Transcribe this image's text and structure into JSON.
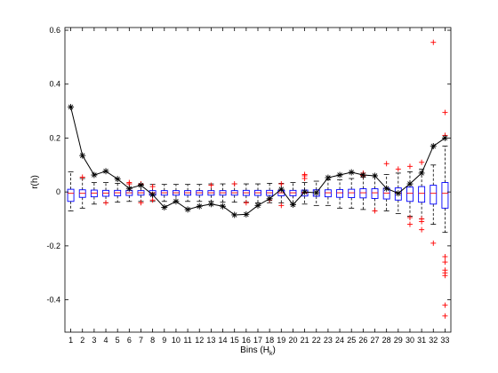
{
  "chart_data": {
    "type": "box",
    "xlabel": "Bins (H",
    "xlabel_sub": "k",
    "xlabel_close": ")",
    "ylabel": "r(h)",
    "ylim": [
      -0.52,
      0.61
    ],
    "xlim": [
      0.5,
      33.5
    ],
    "categories": [
      "1",
      "2",
      "3",
      "4",
      "5",
      "6",
      "7",
      "8",
      "9",
      "10",
      "11",
      "12",
      "13",
      "14",
      "15",
      "16",
      "17",
      "18",
      "19",
      "20",
      "21",
      "22",
      "23",
      "24",
      "25",
      "26",
      "27",
      "28",
      "29",
      "30",
      "31",
      "32",
      "33"
    ],
    "y_ticks": [
      -0.4,
      -0.2,
      0,
      0.2,
      0.4,
      0.6
    ],
    "y_tick_labels": [
      "-0.4",
      "-0.2",
      "0",
      "0.2",
      "0.4",
      "0.6"
    ],
    "grid": false,
    "colors": {
      "box": "#0000ff",
      "median": "#ff0000",
      "outlier": "#ff0000",
      "whisker": "#000000",
      "line": "#000000"
    },
    "boxes": [
      {
        "q1": -0.035,
        "median": -0.005,
        "q3": 0.01,
        "whisker_low": -0.07,
        "whisker_high": 0.075,
        "outliers": []
      },
      {
        "q1": -0.02,
        "median": -0.005,
        "q3": 0.008,
        "whisker_low": -0.06,
        "whisker_high": 0.05,
        "outliers": [
          0.055
        ]
      },
      {
        "q1": -0.018,
        "median": -0.004,
        "q3": 0.007,
        "whisker_low": -0.045,
        "whisker_high": 0.035,
        "outliers": []
      },
      {
        "q1": -0.016,
        "median": -0.004,
        "q3": 0.006,
        "whisker_low": -0.04,
        "whisker_high": 0.035,
        "outliers": [
          -0.04
        ]
      },
      {
        "q1": -0.014,
        "median": -0.003,
        "q3": 0.006,
        "whisker_low": -0.038,
        "whisker_high": 0.032,
        "outliers": []
      },
      {
        "q1": -0.013,
        "median": -0.003,
        "q3": 0.006,
        "whisker_low": -0.035,
        "whisker_high": 0.03,
        "outliers": [
          0.035,
          0.03
        ]
      },
      {
        "q1": -0.012,
        "median": -0.003,
        "q3": 0.005,
        "whisker_low": -0.035,
        "whisker_high": 0.028,
        "outliers": [
          0.03,
          -0.04
        ]
      },
      {
        "q1": -0.012,
        "median": -0.003,
        "q3": 0.005,
        "whisker_low": -0.035,
        "whisker_high": 0.028,
        "outliers": [
          -0.03,
          0.02
        ]
      },
      {
        "q1": -0.012,
        "median": -0.003,
        "q3": 0.005,
        "whisker_low": -0.035,
        "whisker_high": 0.028,
        "outliers": []
      },
      {
        "q1": -0.012,
        "median": -0.003,
        "q3": 0.005,
        "whisker_low": -0.035,
        "whisker_high": 0.028,
        "outliers": []
      },
      {
        "q1": -0.012,
        "median": -0.003,
        "q3": 0.005,
        "whisker_low": -0.035,
        "whisker_high": 0.028,
        "outliers": []
      },
      {
        "q1": -0.012,
        "median": -0.003,
        "q3": 0.005,
        "whisker_low": -0.035,
        "whisker_high": 0.028,
        "outliers": []
      },
      {
        "q1": -0.012,
        "median": -0.003,
        "q3": 0.005,
        "whisker_low": -0.035,
        "whisker_high": 0.03,
        "outliers": [
          0.025
        ]
      },
      {
        "q1": -0.012,
        "median": -0.003,
        "q3": 0.005,
        "whisker_low": -0.038,
        "whisker_high": 0.03,
        "outliers": []
      },
      {
        "q1": -0.012,
        "median": -0.003,
        "q3": 0.005,
        "whisker_low": -0.038,
        "whisker_high": 0.03,
        "outliers": [
          0.03
        ]
      },
      {
        "q1": -0.013,
        "median": -0.003,
        "q3": 0.006,
        "whisker_low": -0.038,
        "whisker_high": 0.03,
        "outliers": [
          -0.04
        ]
      },
      {
        "q1": -0.013,
        "median": -0.003,
        "q3": 0.006,
        "whisker_low": -0.04,
        "whisker_high": 0.03,
        "outliers": []
      },
      {
        "q1": -0.013,
        "median": -0.003,
        "q3": 0.006,
        "whisker_low": -0.04,
        "whisker_high": 0.032,
        "outliers": [
          -0.03
        ]
      },
      {
        "q1": -0.014,
        "median": -0.003,
        "q3": 0.006,
        "whisker_low": -0.04,
        "whisker_high": 0.032,
        "outliers": [
          -0.05,
          0.03
        ]
      },
      {
        "q1": -0.014,
        "median": -0.003,
        "q3": 0.006,
        "whisker_low": -0.042,
        "whisker_high": 0.035,
        "outliers": []
      },
      {
        "q1": -0.015,
        "median": -0.003,
        "q3": 0.007,
        "whisker_low": -0.045,
        "whisker_high": 0.035,
        "outliers": [
          0.065,
          0.06,
          0.05
        ]
      },
      {
        "q1": -0.016,
        "median": -0.003,
        "q3": 0.008,
        "whisker_low": -0.05,
        "whisker_high": 0.04,
        "outliers": []
      },
      {
        "q1": -0.018,
        "median": -0.003,
        "q3": 0.008,
        "whisker_low": -0.05,
        "whisker_high": 0.045,
        "outliers": []
      },
      {
        "q1": -0.02,
        "median": -0.003,
        "q3": 0.009,
        "whisker_low": -0.06,
        "whisker_high": 0.045,
        "outliers": []
      },
      {
        "q1": -0.021,
        "median": -0.003,
        "q3": 0.01,
        "whisker_low": -0.06,
        "whisker_high": 0.05,
        "outliers": []
      },
      {
        "q1": -0.022,
        "median": -0.003,
        "q3": 0.012,
        "whisker_low": -0.065,
        "whisker_high": 0.055,
        "outliers": [
          0.07,
          0.06
        ]
      },
      {
        "q1": -0.024,
        "median": -0.003,
        "q3": 0.012,
        "whisker_low": -0.07,
        "whisker_high": 0.06,
        "outliers": [
          -0.07
        ]
      },
      {
        "q1": -0.026,
        "median": -0.004,
        "q3": 0.014,
        "whisker_low": -0.07,
        "whisker_high": 0.065,
        "outliers": [
          0.105
        ]
      },
      {
        "q1": -0.03,
        "median": -0.004,
        "q3": 0.015,
        "whisker_low": -0.08,
        "whisker_high": 0.07,
        "outliers": [
          0.085
        ]
      },
      {
        "q1": -0.035,
        "median": -0.005,
        "q3": 0.018,
        "whisker_low": -0.09,
        "whisker_high": 0.075,
        "outliers": [
          0.095,
          -0.095,
          -0.12
        ]
      },
      {
        "q1": -0.038,
        "median": -0.005,
        "q3": 0.02,
        "whisker_low": -0.1,
        "whisker_high": 0.085,
        "outliers": [
          0.11,
          -0.1,
          -0.11,
          -0.14
        ]
      },
      {
        "q1": -0.045,
        "median": -0.005,
        "q3": 0.025,
        "whisker_low": -0.12,
        "whisker_high": 0.1,
        "outliers": [
          0.555,
          -0.19
        ]
      },
      {
        "q1": -0.06,
        "median": -0.005,
        "q3": 0.035,
        "whisker_low": -0.15,
        "whisker_high": 0.17,
        "outliers": [
          0.295,
          0.21,
          -0.24,
          -0.26,
          -0.29,
          -0.3,
          -0.31,
          -0.42,
          -0.46
        ]
      }
    ],
    "line_series": {
      "marker": "asterisk",
      "values": [
        0.315,
        0.135,
        0.063,
        0.077,
        0.048,
        0.013,
        0.025,
        -0.01,
        -0.057,
        -0.035,
        -0.065,
        -0.053,
        -0.045,
        -0.053,
        -0.085,
        -0.083,
        -0.05,
        -0.025,
        0.01,
        -0.047,
        0.0,
        -0.003,
        0.053,
        0.063,
        0.073,
        0.063,
        0.06,
        0.013,
        -0.005,
        0.03,
        0.07,
        0.17,
        0.2
      ]
    }
  }
}
